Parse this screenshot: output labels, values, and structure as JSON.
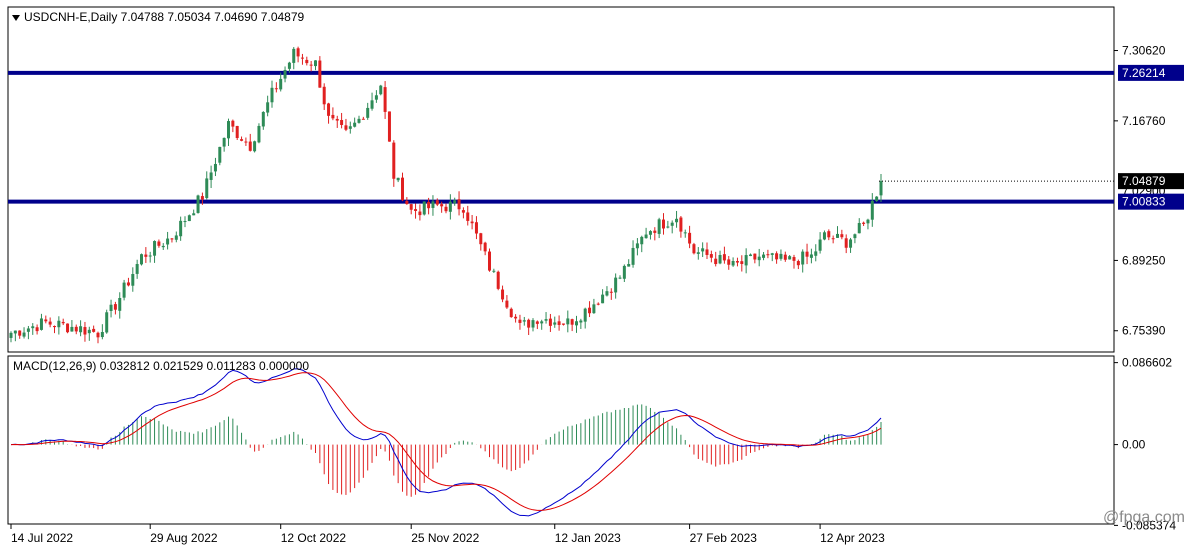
{
  "symbol_header": "USDCNH-E,Daily  7.04788 7.05034 7.04690 7.04879",
  "macd_header": "MACD(12,26,9) 0.032812 0.021529 0.011283 0.000000",
  "watermark": "@fpga.com",
  "colors": {
    "bull": "#2e8b57",
    "bear": "#e02020",
    "level_line": "#00008b",
    "price_label_bg": "#000000",
    "level_label_bg": "#00008b",
    "macd_line": "#0000cd",
    "signal_line": "#e00000",
    "histogram": "#2e8b57"
  },
  "chart_data": [
    {
      "type": "candlestick",
      "title": "USDCNH-E,Daily",
      "ylim": [
        6.712,
        7.392
      ],
      "yticks": [
        "7.30620",
        "7.16760",
        "6.89250",
        "6.75390"
      ],
      "xticks": [
        "14 Jul 2022",
        "29 Aug 2022",
        "12 Oct 2022",
        "25 Nov 2022",
        "12 Jan 2023",
        "27 Feb 2023",
        "12 Apr 2023"
      ],
      "xtick_index": [
        0,
        32,
        62,
        92,
        125,
        156,
        186
      ],
      "horizontal_levels": [
        {
          "value": 7.26214,
          "label": "7.26214"
        },
        {
          "value": 7.00833,
          "label": "7.00833"
        }
      ],
      "current_price": {
        "value": 7.04879,
        "label": "7.04879"
      },
      "hidden_tick": "7.02900",
      "anchors": [
        [
          0,
          6.75
        ],
        [
          8,
          6.77
        ],
        [
          15,
          6.76
        ],
        [
          20,
          6.75
        ],
        [
          25,
          6.82
        ],
        [
          30,
          6.9
        ],
        [
          37,
          6.94
        ],
        [
          44,
          7.02
        ],
        [
          50,
          7.16
        ],
        [
          55,
          7.12
        ],
        [
          60,
          7.22
        ],
        [
          65,
          7.3
        ],
        [
          70,
          7.28
        ],
        [
          73,
          7.17
        ],
        [
          77,
          7.14
        ],
        [
          80,
          7.17
        ],
        [
          85,
          7.24
        ],
        [
          88,
          7.06
        ],
        [
          92,
          6.99
        ],
        [
          98,
          7.0
        ],
        [
          104,
          7.0
        ],
        [
          110,
          6.88
        ],
        [
          117,
          6.76
        ],
        [
          121,
          6.78
        ],
        [
          128,
          6.77
        ],
        [
          133,
          6.8
        ],
        [
          140,
          6.86
        ],
        [
          146,
          6.95
        ],
        [
          153,
          6.98
        ],
        [
          157,
          6.91
        ],
        [
          161,
          6.9
        ],
        [
          166,
          6.88
        ],
        [
          172,
          6.9
        ],
        [
          178,
          6.89
        ],
        [
          184,
          6.9
        ],
        [
          187,
          6.94
        ],
        [
          192,
          6.93
        ],
        [
          196,
          6.96
        ],
        [
          200,
          7.05
        ]
      ]
    },
    {
      "type": "macd",
      "title": "MACD(12,26,9)",
      "params": [
        12,
        26,
        9
      ],
      "values": {
        "macd": 0.032812,
        "signal": 0.021529,
        "histogram": 0.011283,
        "zero": 0.0
      },
      "ylim": [
        -0.0839,
        0.0936
      ],
      "yticks": [
        "0.086602",
        "0.00",
        "-0.085374"
      ],
      "series": [
        {
          "name": "MACD",
          "role": "main"
        },
        {
          "name": "Signal",
          "role": "signal"
        },
        {
          "name": "Histogram",
          "role": "histogram"
        }
      ]
    }
  ]
}
